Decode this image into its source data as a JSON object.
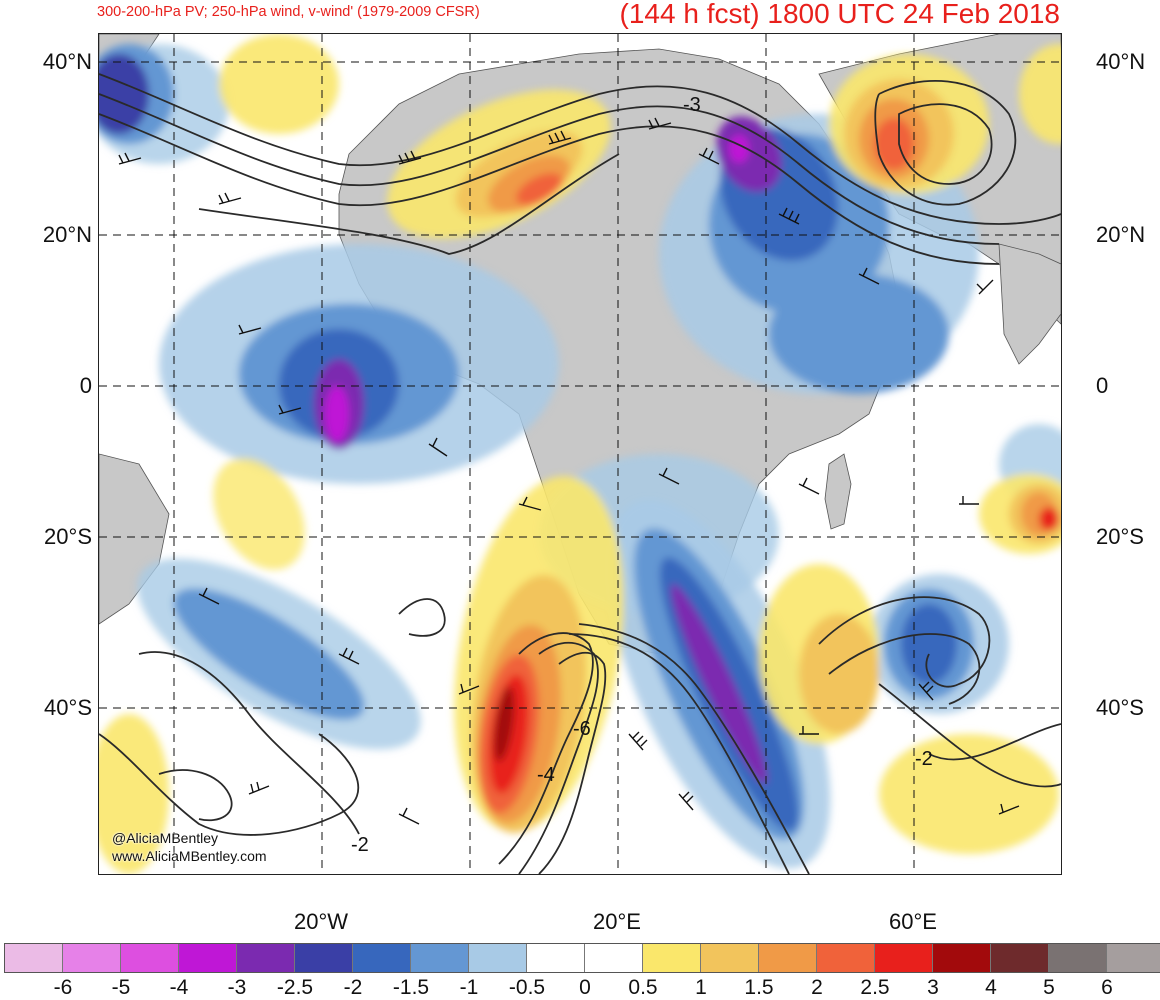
{
  "header": {
    "left_title": "300-200-hPa PV; 250-hPa wind, v-wind' (1979-2009 CFSR)",
    "right_title": "(144 h fcst) 1800 UTC 24 Feb 2018"
  },
  "map": {
    "lat_labels": [
      "40°N",
      "20°N",
      "0",
      "20°S",
      "40°S"
    ],
    "lon_labels": [
      "20°W",
      "20°E",
      "60°E"
    ],
    "contour_labels": [
      "-3",
      "-6",
      "-4",
      "-2",
      "-2"
    ]
  },
  "credits": {
    "handle": "@AliciaMBentley",
    "website": "www.AliciaMBentley.com"
  },
  "colorbar": {
    "ticks": [
      "-6",
      "-5",
      "-4",
      "-3",
      "-2.5",
      "-2",
      "-1.5",
      "-1",
      "-0.5",
      "0",
      "0.5",
      "1",
      "1.5",
      "2",
      "2.5",
      "3",
      "4",
      "5",
      "6"
    ],
    "colors": [
      "#ebbbe6",
      "#e681e8",
      "#dd4fe0",
      "#bf17d6",
      "#7b2ab0",
      "#3a3fa6",
      "#3767bd",
      "#6497d3",
      "#a8cae6",
      "#ffffff",
      "#ffffff",
      "#fae76b",
      "#f2c45c",
      "#f09a47",
      "#f0623a",
      "#e8201c",
      "#a20a0c",
      "#6e2a2c",
      "#7a7272",
      "#a59e9e"
    ]
  },
  "colors": {
    "title": "#e8201c",
    "land": "#c8c8c8",
    "contour": "#2a2a2a"
  }
}
